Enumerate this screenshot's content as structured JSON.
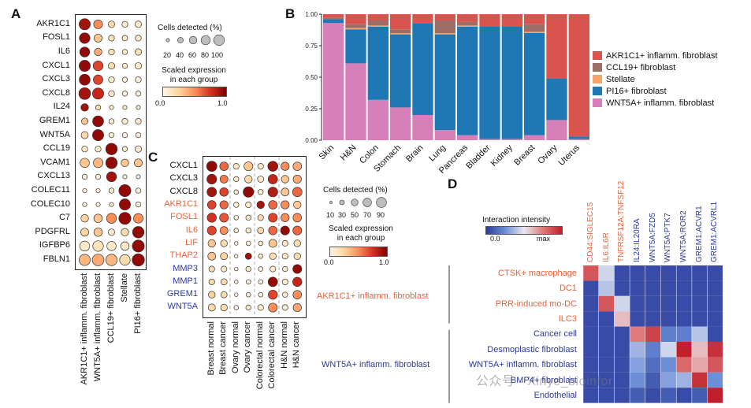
{
  "panels": {
    "a": "A",
    "b": "B",
    "c": "C",
    "d": "D"
  },
  "colors": {
    "red": "#d9534f",
    "brown": "#9c6e66",
    "orange": "#f4a56c",
    "blue": "#1f77b4",
    "pink": "#d67fb8",
    "gene_orange": "#e8623a",
    "gene_blue": "#2b3a9a"
  },
  "panel_a": {
    "genes": [
      "AKR1C1",
      "FOSL1",
      "IL6",
      "CXCL1",
      "CXCL3",
      "CXCL8",
      "IL24",
      "GREM1",
      "WNT5A",
      "CCL19",
      "VCAM1",
      "CXCL13",
      "COLEC11",
      "COLEC10",
      "C7",
      "PDGFRL",
      "IGFBP6",
      "FBLN1"
    ],
    "groups": [
      "AKR1C1+ inflamm. fibroblast",
      "WNT5A+ inflamm. fibroblast",
      "CCL19+ fibroblast",
      "Stellate",
      "PI16+ fibroblast"
    ],
    "dots": [
      [
        [
          80,
          0.9
        ],
        [
          45,
          0.5
        ],
        [
          20,
          0.2
        ],
        [
          15,
          0.1
        ],
        [
          20,
          0.1
        ]
      ],
      [
        [
          70,
          0.95
        ],
        [
          35,
          0.3
        ],
        [
          15,
          0.15
        ],
        [
          12,
          0.1
        ],
        [
          15,
          0.1
        ]
      ],
      [
        [
          60,
          0.95
        ],
        [
          30,
          0.4
        ],
        [
          15,
          0.15
        ],
        [
          10,
          0.1
        ],
        [
          20,
          0.15
        ]
      ],
      [
        [
          80,
          0.95
        ],
        [
          60,
          0.7
        ],
        [
          20,
          0.2
        ],
        [
          10,
          0.1
        ],
        [
          20,
          0.1
        ]
      ],
      [
        [
          75,
          0.95
        ],
        [
          55,
          0.7
        ],
        [
          15,
          0.1
        ],
        [
          10,
          0.05
        ],
        [
          15,
          0.05
        ]
      ],
      [
        [
          90,
          0.9
        ],
        [
          80,
          0.8
        ],
        [
          15,
          0.1
        ],
        [
          10,
          0.05
        ],
        [
          10,
          0.05
        ]
      ],
      [
        [
          30,
          0.9
        ],
        [
          10,
          0.2
        ],
        [
          5,
          0.1
        ],
        [
          5,
          0.1
        ],
        [
          5,
          0.1
        ]
      ],
      [
        [
          20,
          0.3
        ],
        [
          75,
          0.95
        ],
        [
          10,
          0.1
        ],
        [
          15,
          0.1
        ],
        [
          15,
          0.1
        ]
      ],
      [
        [
          25,
          0.2
        ],
        [
          80,
          0.95
        ],
        [
          10,
          0.1
        ],
        [
          10,
          0.05
        ],
        [
          10,
          0.05
        ]
      ],
      [
        [
          15,
          0.1
        ],
        [
          15,
          0.1
        ],
        [
          85,
          0.95
        ],
        [
          10,
          0.1
        ],
        [
          20,
          0.1
        ]
      ],
      [
        [
          50,
          0.3
        ],
        [
          55,
          0.35
        ],
        [
          85,
          0.95
        ],
        [
          30,
          0.3
        ],
        [
          35,
          0.3
        ]
      ],
      [
        [
          10,
          0.05
        ],
        [
          10,
          0.05
        ],
        [
          60,
          0.9
        ],
        [
          5,
          0.05
        ],
        [
          5,
          0.05
        ]
      ],
      [
        [
          5,
          0.05
        ],
        [
          5,
          0.05
        ],
        [
          10,
          0.1
        ],
        [
          95,
          0.95
        ],
        [
          10,
          0.05
        ]
      ],
      [
        [
          5,
          0.05
        ],
        [
          5,
          0.05
        ],
        [
          5,
          0.05
        ],
        [
          80,
          0.95
        ],
        [
          10,
          0.05
        ]
      ],
      [
        [
          30,
          0.25
        ],
        [
          40,
          0.3
        ],
        [
          60,
          0.5
        ],
        [
          95,
          0.95
        ],
        [
          55,
          0.5
        ]
      ],
      [
        [
          35,
          0.25
        ],
        [
          40,
          0.3
        ],
        [
          20,
          0.1
        ],
        [
          30,
          0.2
        ],
        [
          85,
          0.95
        ]
      ],
      [
        [
          60,
          0.1
        ],
        [
          70,
          0.15
        ],
        [
          50,
          0.1
        ],
        [
          40,
          0.1
        ],
        [
          95,
          0.95
        ]
      ],
      [
        [
          80,
          0.35
        ],
        [
          90,
          0.4
        ],
        [
          85,
          0.35
        ],
        [
          70,
          0.2
        ],
        [
          100,
          0.95
        ]
      ]
    ]
  },
  "legend_a": {
    "size_title": "Cells detected (%)",
    "size_ticks": [
      "20",
      "40",
      "60",
      "80",
      "100"
    ],
    "color_title": "Scaled expression\nin each group",
    "color_min": "0.0",
    "color_max": "1.0"
  },
  "chart_data": {
    "type": "bar",
    "stacked": true,
    "title": "",
    "categories": [
      "Skin",
      "H&N",
      "Colon",
      "Stomach",
      "Brain",
      "Lung",
      "Pancreas",
      "Bladder",
      "Kidney",
      "Breast",
      "Ovary",
      "Uterus"
    ],
    "ylim": [
      0,
      1
    ],
    "yticks": [
      "0.00",
      "0.25",
      "0.50",
      "0.75",
      "1.00"
    ],
    "series": [
      {
        "name": "WNT5A+ inflamm. fibroblast",
        "color": "#d67fb8",
        "values": [
          0.93,
          0.61,
          0.32,
          0.26,
          0.2,
          0.08,
          0.04,
          0.01,
          0.01,
          0.04,
          0.16,
          0.01
        ]
      },
      {
        "name": "PI16+ fibroblast",
        "color": "#1f77b4",
        "values": [
          0.03,
          0.27,
          0.58,
          0.58,
          0.73,
          0.76,
          0.86,
          0.89,
          0.89,
          0.81,
          0.33,
          0.02
        ]
      },
      {
        "name": "Stellate",
        "color": "#f4a56c",
        "values": [
          0.0,
          0.01,
          0.01,
          0.01,
          0.0,
          0.01,
          0.01,
          0.0,
          0.0,
          0.01,
          0.0,
          0.0
        ]
      },
      {
        "name": "CCL19+ fibroblast",
        "color": "#9c6e66",
        "values": [
          0.01,
          0.03,
          0.04,
          0.03,
          0.0,
          0.1,
          0.03,
          0.0,
          0.0,
          0.06,
          0.0,
          0.0
        ]
      },
      {
        "name": "AKR1C1+ inflamm. fibroblast",
        "color": "#d9534f",
        "values": [
          0.03,
          0.08,
          0.05,
          0.12,
          0.07,
          0.05,
          0.06,
          0.1,
          0.1,
          0.08,
          0.51,
          0.97
        ]
      }
    ],
    "legend": [
      "AKR1C1+ inflamm. fibroblast",
      "CCL19+ fibroblast",
      "Stellate",
      "PI16+ fibroblast",
      "WNT5A+ inflamm. fibroblast"
    ]
  },
  "panel_c": {
    "genes": [
      "CXCL1",
      "CXCL3",
      "CXCL8",
      "AKR1C1",
      "FOSL1",
      "IL6",
      "LIF",
      "THAP2",
      "MMP3",
      "MMP1",
      "GREM1",
      "WNT5A"
    ],
    "gene_colors": [
      "#111111",
      "#111111",
      "#111111",
      "#e8623a",
      "#e8623a",
      "#e8623a",
      "#e8623a",
      "#e8623a",
      "#2b3a9a",
      "#2b3a9a",
      "#2b3a9a",
      "#2b3a9a"
    ],
    "groups": [
      "Breast normal",
      "Breast cancer",
      "Ovary normal",
      "Ovary cancer",
      "Colorectal normal",
      "Colorectal cancer",
      "H&N normal",
      "H&N cancer"
    ],
    "dots": [
      [
        [
          85,
          0.95
        ],
        [
          55,
          0.6
        ],
        [
          20,
          0.1
        ],
        [
          60,
          0.3
        ],
        [
          20,
          0.1
        ],
        [
          80,
          0.9
        ],
        [
          50,
          0.5
        ],
        [
          55,
          0.4
        ]
      ],
      [
        [
          75,
          0.9
        ],
        [
          45,
          0.55
        ],
        [
          15,
          0.1
        ],
        [
          40,
          0.2
        ],
        [
          25,
          0.1
        ],
        [
          70,
          0.8
        ],
        [
          40,
          0.3
        ],
        [
          50,
          0.4
        ]
      ],
      [
        [
          70,
          0.9
        ],
        [
          55,
          0.7
        ],
        [
          10,
          0.1
        ],
        [
          90,
          0.95
        ],
        [
          15,
          0.1
        ],
        [
          75,
          0.85
        ],
        [
          45,
          0.3
        ],
        [
          70,
          0.6
        ]
      ],
      [
        [
          55,
          0.7
        ],
        [
          50,
          0.6
        ],
        [
          15,
          0.05
        ],
        [
          20,
          0.1
        ],
        [
          40,
          0.9
        ],
        [
          55,
          0.6
        ],
        [
          50,
          0.5
        ],
        [
          40,
          0.3
        ]
      ],
      [
        [
          65,
          0.75
        ],
        [
          60,
          0.65
        ],
        [
          10,
          0.05
        ],
        [
          15,
          0.1
        ],
        [
          20,
          0.2
        ],
        [
          60,
          0.7
        ],
        [
          50,
          0.5
        ],
        [
          55,
          0.5
        ]
      ],
      [
        [
          60,
          0.7
        ],
        [
          45,
          0.5
        ],
        [
          10,
          0.05
        ],
        [
          15,
          0.1
        ],
        [
          25,
          0.2
        ],
        [
          55,
          0.6
        ],
        [
          60,
          0.95
        ],
        [
          60,
          0.6
        ]
      ],
      [
        [
          40,
          0.3
        ],
        [
          30,
          0.2
        ],
        [
          5,
          0.05
        ],
        [
          10,
          0.05
        ],
        [
          10,
          0.1
        ],
        [
          45,
          0.3
        ],
        [
          20,
          0.1
        ],
        [
          30,
          0.2
        ]
      ],
      [
        [
          45,
          0.3
        ],
        [
          35,
          0.25
        ],
        [
          5,
          0.05
        ],
        [
          25,
          0.9
        ],
        [
          10,
          0.1
        ],
        [
          30,
          0.2
        ],
        [
          20,
          0.1
        ],
        [
          30,
          0.2
        ]
      ],
      [
        [
          20,
          0.2
        ],
        [
          20,
          0.1
        ],
        [
          5,
          0.05
        ],
        [
          15,
          0.1
        ],
        [
          10,
          0.05
        ],
        [
          20,
          0.1
        ],
        [
          15,
          0.1
        ],
        [
          60,
          0.95
        ]
      ],
      [
        [
          20,
          0.2
        ],
        [
          25,
          0.2
        ],
        [
          5,
          0.05
        ],
        [
          10,
          0.05
        ],
        [
          10,
          0.05
        ],
        [
          70,
          0.95
        ],
        [
          20,
          0.1
        ],
        [
          65,
          0.8
        ]
      ],
      [
        [
          30,
          0.25
        ],
        [
          25,
          0.2
        ],
        [
          5,
          0.05
        ],
        [
          10,
          0.05
        ],
        [
          10,
          0.05
        ],
        [
          65,
          0.7
        ],
        [
          15,
          0.1
        ],
        [
          55,
          0.5
        ]
      ],
      [
        [
          35,
          0.2
        ],
        [
          30,
          0.2
        ],
        [
          10,
          0.05
        ],
        [
          15,
          0.1
        ],
        [
          20,
          0.1
        ],
        [
          60,
          0.5
        ],
        [
          20,
          0.1
        ],
        [
          50,
          0.4
        ]
      ]
    ]
  },
  "legend_c": {
    "size_title": "Cells detected (%)",
    "size_ticks": [
      "10",
      "30",
      "50",
      "70",
      "90"
    ],
    "color_title": "Scaled expression\nin each group",
    "color_min": "0.0",
    "color_max": "1.0"
  },
  "panel_d": {
    "interactions": [
      "CD44:SIGLEC15",
      "IL6:IL6R",
      "TNFRSF12A:TNFSF12",
      "IL24:IL20RA",
      "WNT5A:FZD5",
      "WNT5A:PTK7",
      "WNT5A:ROR2",
      "GREM1:ACVR1",
      "GREM1:ACVRL1"
    ],
    "interaction_colors": [
      "#e8623a",
      "#e8623a",
      "#e8623a",
      "#2b3a9a",
      "#2b3a9a",
      "#2b3a9a",
      "#2b3a9a",
      "#2b3a9a",
      "#2b3a9a"
    ],
    "receivers": [
      "CTSK+ macrophage",
      "DC1",
      "PRR-induced mo-DC",
      "ILC3",
      "Cancer cell",
      "Desmoplastic fibroblast",
      "WNT5A+ inflamm. fibroblast",
      "BMP4+ fibroblast",
      "Endothelial"
    ],
    "receiver_colors": [
      "#e8623a",
      "#e8623a",
      "#e8623a",
      "#e8623a",
      "#2b3a9a",
      "#2b3a9a",
      "#2b3a9a",
      "#2b3a9a",
      "#2b3a9a"
    ],
    "sender_top": "AKR1C1+ inflamm. fibroblast",
    "sender_bottom": "WNT5A+ inflamm. fibroblast",
    "sender_top_color": "#e8623a",
    "sender_bottom_color": "#2b3a9a",
    "legend_title": "Interaction intensity",
    "legend_min": "0.0",
    "legend_max": "max",
    "values": [
      [
        0.85,
        0.45,
        0.05,
        0.05,
        0.05,
        0.05,
        0.05,
        0.05,
        0.05
      ],
      [
        0.05,
        0.4,
        0.05,
        0.05,
        0.05,
        0.05,
        0.05,
        0.05,
        0.05
      ],
      [
        0.05,
        0.85,
        0.45,
        0.05,
        0.05,
        0.05,
        0.05,
        0.05,
        0.05
      ],
      [
        0.05,
        0.05,
        0.6,
        0.05,
        0.05,
        0.05,
        0.05,
        0.05,
        0.05
      ],
      [
        0.05,
        0.05,
        0.05,
        0.75,
        0.9,
        0.2,
        0.2,
        0.4,
        0.05
      ],
      [
        0.05,
        0.05,
        0.05,
        0.35,
        0.2,
        0.45,
        1.0,
        0.6,
        0.95
      ],
      [
        0.05,
        0.05,
        0.05,
        0.3,
        0.15,
        0.25,
        0.8,
        0.65,
        0.85
      ],
      [
        0.05,
        0.05,
        0.05,
        0.25,
        0.1,
        0.3,
        0.35,
        0.95,
        0.25
      ],
      [
        0.05,
        0.05,
        0.05,
        0.1,
        0.05,
        0.1,
        0.05,
        0.1,
        1.0
      ]
    ]
  },
  "watermark": "公众号 · Xinye_bioinfor"
}
